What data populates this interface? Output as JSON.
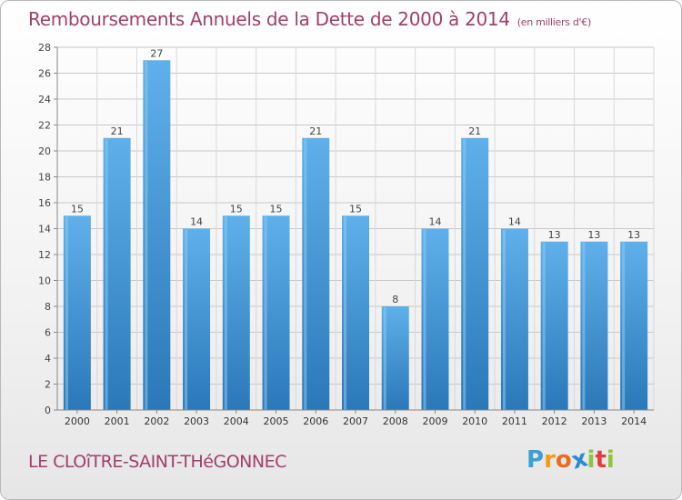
{
  "title": "Remboursements Annuels de la Dette de 2000 à 2014",
  "title_unit": "(en milliers d'€)",
  "commune": "LE CLOîTRE-SAINT-THéGONNEC",
  "logo": {
    "letters": [
      "P",
      "r",
      "o",
      "x",
      "i",
      "t",
      "i"
    ],
    "colors": [
      "#3aa0d8",
      "#f39c12",
      "#ec6b1c",
      "#2b8ad1",
      "#8cc63f",
      "#e43c3c",
      "#8cc63f"
    ]
  },
  "colors": {
    "bar": "#4ea3e0",
    "bar_light": "#7cc2f2",
    "bar_dark": "#2f7fbf",
    "title": "#a0406a",
    "grid": "#c8c8c8"
  },
  "chart_data": {
    "type": "bar",
    "categories": [
      "2000",
      "2001",
      "2002",
      "2003",
      "2004",
      "2005",
      "2006",
      "2007",
      "2008",
      "2009",
      "2010",
      "2011",
      "2012",
      "2013",
      "2014"
    ],
    "values": [
      15,
      21,
      27,
      14,
      15,
      15,
      21,
      15,
      8,
      14,
      21,
      14,
      13,
      13,
      13
    ],
    "ylim": [
      0,
      28
    ],
    "yticks": [
      0,
      2,
      4,
      6,
      8,
      10,
      12,
      14,
      16,
      18,
      20,
      22,
      24,
      26,
      28
    ],
    "grid": true
  }
}
